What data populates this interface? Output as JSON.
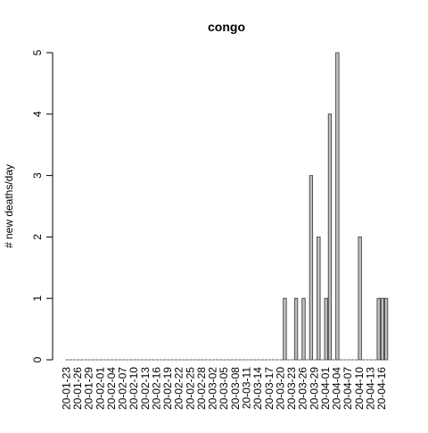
{
  "chart_data": {
    "type": "bar",
    "title": "congo",
    "ylabel": "# new deaths/day",
    "categories": [
      "20-01-23",
      null,
      null,
      "20-01-26",
      null,
      null,
      "20-01-29",
      null,
      null,
      "20-02-01",
      null,
      null,
      "20-02-04",
      null,
      null,
      "20-02-07",
      null,
      null,
      "20-02-10",
      null,
      null,
      "20-02-13",
      null,
      null,
      "20-02-16",
      null,
      null,
      "20-02-19",
      null,
      null,
      "20-02-22",
      null,
      null,
      "20-02-25",
      null,
      null,
      "20-02-28",
      null,
      null,
      "20-03-02",
      null,
      null,
      "20-03-05",
      null,
      null,
      "20-03-08",
      null,
      null,
      "20-03-11",
      null,
      null,
      "20-03-14",
      null,
      null,
      "20-03-17",
      null,
      null,
      "20-03-20",
      null,
      null,
      "20-03-23",
      null,
      null,
      "20-03-26",
      null,
      null,
      "20-03-29",
      null,
      null,
      "20-04-01",
      null,
      null,
      "20-04-04",
      null,
      null,
      "20-04-07",
      null,
      null,
      "20-04-10",
      null,
      null,
      "20-04-13",
      null,
      null,
      "20-04-16",
      null
    ],
    "values": [
      0,
      0,
      0,
      0,
      0,
      0,
      0,
      0,
      0,
      0,
      0,
      0,
      0,
      0,
      0,
      0,
      0,
      0,
      0,
      0,
      0,
      0,
      0,
      0,
      0,
      0,
      0,
      0,
      0,
      0,
      0,
      0,
      0,
      0,
      0,
      0,
      0,
      0,
      0,
      0,
      0,
      0,
      0,
      0,
      0,
      0,
      0,
      0,
      0,
      0,
      0,
      0,
      0,
      0,
      0,
      0,
      0,
      0,
      1,
      0,
      0,
      1,
      0,
      1,
      0,
      3,
      0,
      2,
      0,
      1,
      4,
      0,
      5,
      0,
      0,
      0,
      0,
      0,
      2,
      0,
      0,
      0,
      0,
      1,
      1,
      1
    ],
    "color": "#bebebe",
    "ylim": [
      0,
      5
    ],
    "yticks": [
      0,
      1,
      2,
      3,
      4,
      5
    ]
  }
}
